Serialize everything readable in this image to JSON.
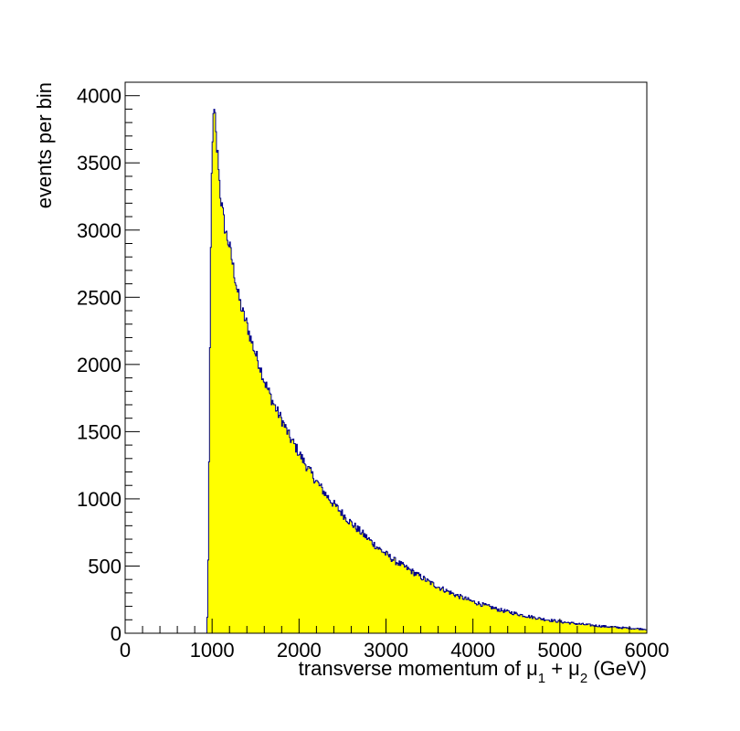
{
  "chart_data": {
    "type": "bar",
    "style": "histogram",
    "title": "",
    "xlabel": {
      "parts": [
        "transverse momentum of μ",
        "1",
        " + μ",
        "2",
        " (GeV)"
      ]
    },
    "ylabel": "events per bin",
    "xlim": [
      0,
      6000
    ],
    "ylim": [
      0,
      4100
    ],
    "bin_width": 10,
    "x_ticks": [
      0,
      1000,
      2000,
      3000,
      4000,
      5000,
      6000
    ],
    "x_tick_labels": [
      "0",
      "1000",
      "2000",
      "3000",
      "4000",
      "5000",
      "6000"
    ],
    "y_ticks": [
      0,
      500,
      1000,
      1500,
      2000,
      2500,
      3000,
      3500,
      4000
    ],
    "y_tick_labels": [
      "0",
      "500",
      "1000",
      "1500",
      "2000",
      "2500",
      "3000",
      "3500",
      "4000"
    ],
    "grid": false,
    "legend": "none",
    "fill_color": "#ffff00",
    "line_color": "#00008b",
    "points": [
      [
        940,
        0
      ],
      [
        950,
        230
      ],
      [
        960,
        880
      ],
      [
        970,
        1650
      ],
      [
        980,
        2500
      ],
      [
        990,
        3200
      ],
      [
        1000,
        3600
      ],
      [
        1010,
        3800
      ],
      [
        1020,
        3830
      ],
      [
        1030,
        3910
      ],
      [
        1040,
        3750
      ],
      [
        1050,
        3650
      ],
      [
        1060,
        3550
      ],
      [
        1070,
        3560
      ],
      [
        1080,
        3420
      ],
      [
        1090,
        3300
      ],
      [
        1100,
        3240
      ],
      [
        1150,
        3000
      ],
      [
        1200,
        2880
      ],
      [
        1250,
        2700
      ],
      [
        1300,
        2520
      ],
      [
        1350,
        2390
      ],
      [
        1400,
        2300
      ],
      [
        1450,
        2180
      ],
      [
        1500,
        2080
      ],
      [
        1550,
        1990
      ],
      [
        1600,
        1880
      ],
      [
        1650,
        1800
      ],
      [
        1700,
        1720
      ],
      [
        1750,
        1650
      ],
      [
        1800,
        1590
      ],
      [
        1850,
        1520
      ],
      [
        1900,
        1450
      ],
      [
        1950,
        1400
      ],
      [
        2000,
        1340
      ],
      [
        2100,
        1230
      ],
      [
        2200,
        1130
      ],
      [
        2300,
        1040
      ],
      [
        2400,
        960
      ],
      [
        2500,
        890
      ],
      [
        2600,
        820
      ],
      [
        2700,
        760
      ],
      [
        2800,
        700
      ],
      [
        2900,
        640
      ],
      [
        3000,
        590
      ],
      [
        3100,
        540
      ],
      [
        3200,
        500
      ],
      [
        3300,
        460
      ],
      [
        3400,
        420
      ],
      [
        3500,
        380
      ],
      [
        3600,
        345
      ],
      [
        3700,
        315
      ],
      [
        3800,
        285
      ],
      [
        3900,
        260
      ],
      [
        4000,
        235
      ],
      [
        4100,
        215
      ],
      [
        4200,
        195
      ],
      [
        4300,
        175
      ],
      [
        4400,
        160
      ],
      [
        4500,
        145
      ],
      [
        4600,
        130
      ],
      [
        4700,
        118
      ],
      [
        4800,
        106
      ],
      [
        4900,
        96
      ],
      [
        5000,
        86
      ],
      [
        5200,
        70
      ],
      [
        5400,
        57
      ],
      [
        5600,
        46
      ],
      [
        5800,
        37
      ],
      [
        6000,
        30
      ]
    ]
  }
}
